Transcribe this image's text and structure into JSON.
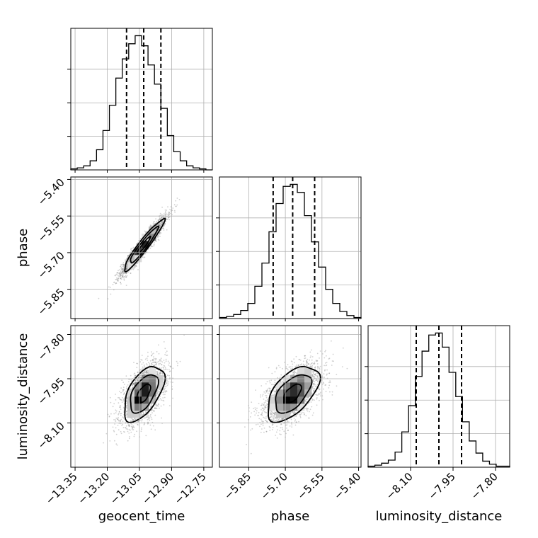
{
  "chart_data": {
    "type": "corner",
    "parameters": [
      "geocent_time",
      "phase",
      "luminosity_distance"
    ],
    "axis_labels": {
      "x": [
        "geocent_time",
        "phase",
        "luminosity_distance"
      ],
      "y": [
        "phase",
        "luminosity_distance"
      ]
    },
    "x_ranges": [
      [
        -13.37,
        -12.71
      ],
      [
        -5.97,
        -5.39
      ],
      [
        -8.25,
        -7.75
      ]
    ],
    "y_ranges": {
      "phase": [
        -5.97,
        -5.39
      ],
      "luminosity_distance": [
        -8.25,
        -7.77
      ]
    },
    "x_tick_labels": [
      [
        "−13.35",
        "−13.20",
        "−13.05",
        "−12.90",
        "−12.75"
      ],
      [
        "−5.85",
        "−5.70",
        "−5.55",
        "−5.40"
      ],
      [
        "−8.10",
        "−7.95",
        "−7.80"
      ]
    ],
    "x_ticks": [
      [
        -13.35,
        -13.2,
        -13.05,
        -12.9,
        -12.75
      ],
      [
        -5.85,
        -5.7,
        -5.55,
        -5.4
      ],
      [
        -8.1,
        -7.95,
        -7.8
      ]
    ],
    "y_tick_labels": {
      "phase": [
        "−5.40",
        "−5.55",
        "−5.70",
        "−5.85"
      ],
      "luminosity_distance": [
        "−7.80",
        "−7.95",
        "−8.10"
      ]
    },
    "y_ticks": {
      "phase": [
        -5.4,
        -5.55,
        -5.7,
        -5.85
      ],
      "luminosity_distance": [
        -7.8,
        -7.95,
        -8.1
      ]
    },
    "quantiles": {
      "geocent_time": [
        -13.11,
        -13.03,
        -12.95
      ],
      "phase": [
        -5.75,
        -5.67,
        -5.58
      ],
      "luminosity_distance": [
        -8.08,
        -8.0,
        -7.92
      ]
    },
    "histograms": {
      "geocent_time": {
        "bins": [
          -13.37,
          -12.71
        ],
        "counts": [
          1,
          2,
          4,
          9,
          20,
          39,
          64,
          91,
          110,
          125,
          133,
          123,
          104,
          85,
          61,
          34,
          18,
          9,
          4,
          2,
          1,
          0
        ]
      },
      "phase": {
        "bins": [
          -5.97,
          -5.39
        ],
        "counts": [
          1,
          2,
          4,
          8,
          15,
          32,
          55,
          86,
          114,
          131,
          133,
          125,
          102,
          76,
          51,
          29,
          15,
          7,
          3,
          1
        ]
      },
      "luminosity_distance": {
        "bins": [
          -8.25,
          -7.75
        ],
        "counts": [
          1,
          2,
          4,
          7,
          15,
          35,
          61,
          90,
          115,
          131,
          133,
          119,
          94,
          70,
          45,
          26,
          14,
          6,
          3,
          1,
          1
        ]
      }
    },
    "pairs": [
      {
        "x": "geocent_time",
        "y": "phase",
        "mean": [
          -13.03,
          -5.67
        ],
        "sd": [
          0.052,
          0.059
        ],
        "corr": 0.95
      },
      {
        "x": "geocent_time",
        "y": "luminosity_distance",
        "mean": [
          -13.03,
          -8.0
        ],
        "sd": [
          0.052,
          0.052
        ],
        "corr": 0.55
      },
      {
        "x": "phase",
        "y": "luminosity_distance",
        "mean": [
          -5.67,
          -8.0
        ],
        "sd": [
          0.059,
          0.052
        ],
        "corr": 0.55
      }
    ],
    "grid": true
  }
}
